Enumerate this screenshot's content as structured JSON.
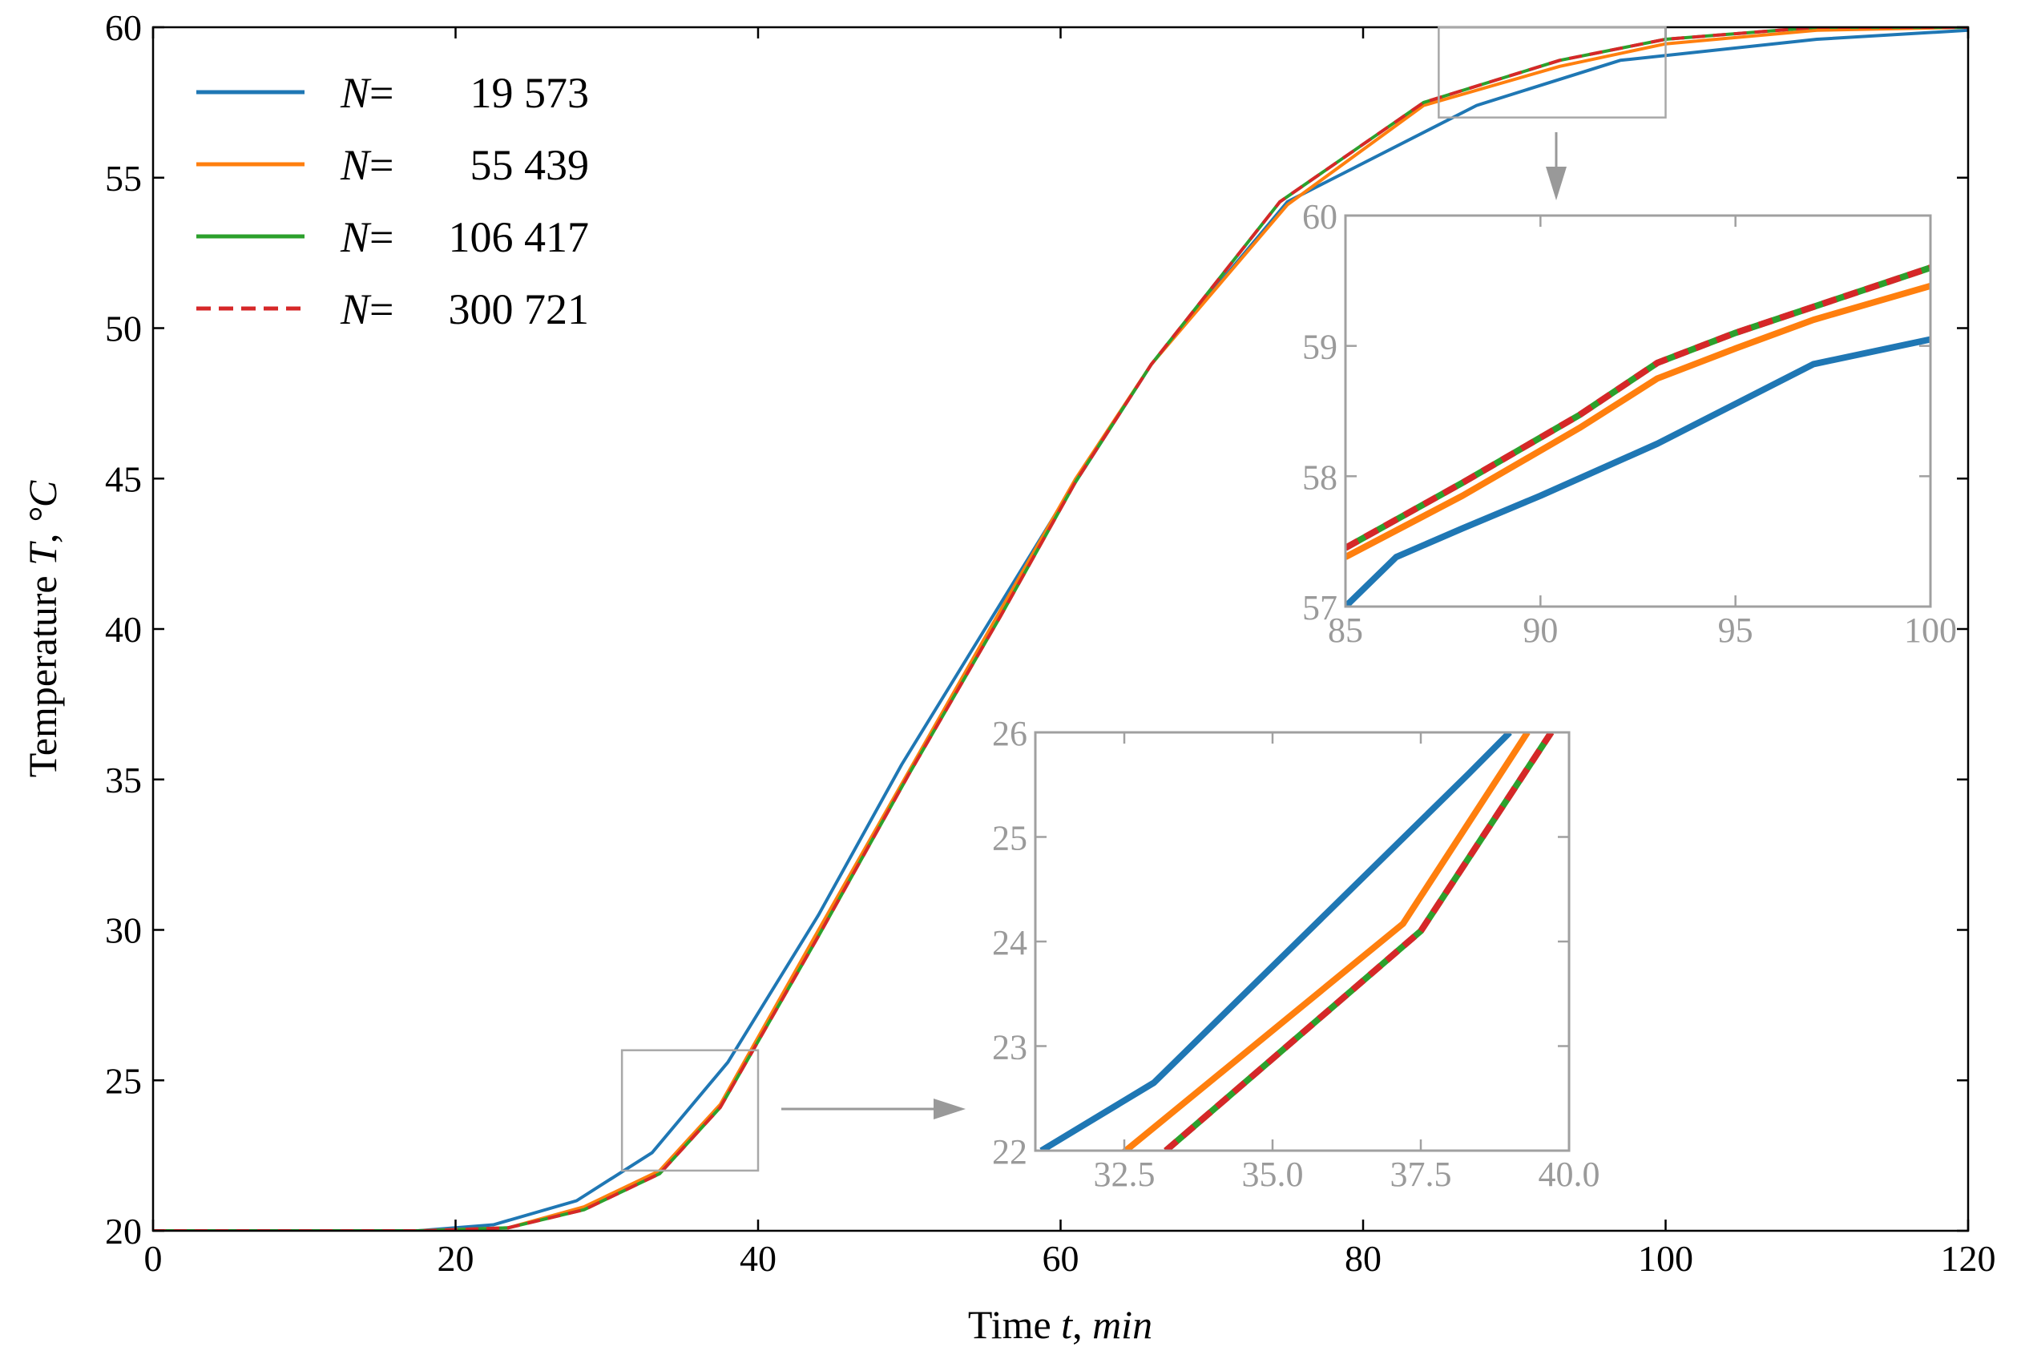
{
  "chart_data": [
    {
      "id": "main",
      "type": "line",
      "title": "",
      "xlabel": "Time t, min",
      "ylabel": "Temperature T, °C",
      "xlabel_parts": {
        "prefix": "Time ",
        "var": "t",
        "sep": ", ",
        "unit": "min"
      },
      "ylabel_parts": {
        "prefix": "Temperature ",
        "var": "T",
        "sep": ", ",
        "unit": "°C"
      },
      "xlim": [
        0,
        120
      ],
      "ylim": [
        20,
        60
      ],
      "xticks": [
        0,
        20,
        40,
        60,
        80,
        100,
        120
      ],
      "yticks": [
        20,
        25,
        30,
        35,
        40,
        45,
        50,
        55,
        60
      ],
      "xtick_labels": [
        "0",
        "20",
        "40",
        "60",
        "80",
        "100",
        "120"
      ],
      "ytick_labels": [
        "20",
        "25",
        "30",
        "35",
        "40",
        "45",
        "50",
        "55",
        "60"
      ],
      "grid": false,
      "legend_position": "top-left",
      "series": [
        {
          "name": "N = 19 573",
          "label_var": "N",
          "label_eq": "=",
          "label_value": "19 573",
          "color": "#1f77b4",
          "dash": "solid",
          "x": [
            0,
            17.5,
            22.5,
            28,
            33,
            38,
            44,
            49.5,
            55,
            60.5,
            66,
            75,
            87.5,
            97,
            110,
            120
          ],
          "y": [
            20,
            20,
            20.2,
            21.0,
            22.6,
            25.6,
            30.5,
            35.5,
            40.0,
            44.5,
            48.8,
            54.2,
            57.4,
            58.9,
            59.6,
            59.9
          ]
        },
        {
          "name": "N = 55 439",
          "label_var": "N",
          "label_eq": "=",
          "label_value": "55 439",
          "color": "#ff7f0e",
          "dash": "solid",
          "x": [
            0,
            17.5,
            23.5,
            28.5,
            33.5,
            37.5,
            44,
            50,
            56,
            61,
            66,
            75,
            84,
            93,
            100,
            110,
            120
          ],
          "y": [
            20,
            20,
            20.1,
            20.8,
            22.0,
            24.2,
            30.0,
            35.3,
            40.6,
            45.0,
            48.8,
            54.1,
            57.4,
            58.7,
            59.45,
            59.9,
            60
          ]
        },
        {
          "name": "N = 106 417",
          "label_var": "N",
          "label_eq": "=",
          "label_value": "106 417",
          "color": "#2ca02c",
          "dash": "solid",
          "x": [
            0,
            18,
            23.5,
            28.5,
            33.5,
            37.5,
            44,
            50,
            56,
            61,
            66,
            74.5,
            84,
            93,
            100,
            110,
            120
          ],
          "y": [
            20,
            20,
            20.1,
            20.7,
            21.9,
            24.1,
            29.8,
            35.2,
            40.4,
            44.9,
            48.8,
            54.2,
            57.5,
            58.9,
            59.6,
            60,
            60
          ]
        },
        {
          "name": "N = 300 721",
          "label_var": "N",
          "label_eq": "=",
          "label_value": "300 721",
          "color": "#d62728",
          "dash": "dashed",
          "x": [
            0,
            18,
            23.5,
            28.5,
            33.5,
            37.5,
            44,
            50,
            56,
            61,
            66,
            74.5,
            84,
            93,
            100,
            110,
            120
          ],
          "y": [
            20,
            20,
            20.1,
            20.7,
            21.9,
            24.1,
            29.8,
            35.2,
            40.4,
            44.9,
            48.8,
            54.2,
            57.5,
            58.9,
            59.6,
            60,
            60
          ]
        }
      ],
      "zoom_regions": [
        {
          "target": "inset-upper",
          "xlim": [
            85,
            100
          ],
          "ylim": [
            57,
            60
          ]
        },
        {
          "target": "inset-lower",
          "xlim": [
            31,
            40
          ],
          "ylim": [
            22,
            26
          ]
        }
      ]
    },
    {
      "id": "inset-upper",
      "type": "line",
      "xlim": [
        85,
        100
      ],
      "ylim": [
        57,
        60
      ],
      "xticks": [
        85,
        90,
        95,
        100
      ],
      "yticks": [
        57,
        58,
        59,
        60
      ],
      "xtick_labels": [
        "85",
        "90",
        "95",
        "100"
      ],
      "ytick_labels": [
        "57",
        "58",
        "59",
        "60"
      ],
      "series": [
        {
          "name": "N = 19 573",
          "color": "#1f77b4",
          "dash": "solid",
          "x": [
            85,
            86.3,
            88,
            90,
            93,
            97,
            100
          ],
          "y": [
            57.0,
            57.38,
            57.6,
            57.85,
            58.25,
            58.86,
            59.05
          ]
        },
        {
          "name": "N = 55 439",
          "color": "#ff7f0e",
          "dash": "solid",
          "x": [
            85,
            88,
            91,
            93,
            95,
            97,
            100
          ],
          "y": [
            57.38,
            57.85,
            58.37,
            58.75,
            58.98,
            59.2,
            59.46
          ]
        },
        {
          "name": "N = 106 417",
          "color": "#2ca02c",
          "dash": "solid",
          "x": [
            85,
            88,
            91,
            93,
            95,
            97,
            100
          ],
          "y": [
            57.45,
            57.95,
            58.47,
            58.87,
            59.1,
            59.3,
            59.6
          ]
        },
        {
          "name": "N = 300 721",
          "color": "#d62728",
          "dash": "dashed",
          "x": [
            85,
            88,
            91,
            93,
            95,
            97,
            100
          ],
          "y": [
            57.45,
            57.95,
            58.47,
            58.87,
            59.1,
            59.3,
            59.6
          ]
        }
      ]
    },
    {
      "id": "inset-lower",
      "type": "line",
      "xlim": [
        31,
        40
      ],
      "ylim": [
        22,
        26
      ],
      "xticks": [
        32.5,
        35.0,
        37.5,
        40.0
      ],
      "yticks": [
        22,
        23,
        24,
        25,
        26
      ],
      "xtick_labels": [
        "32.5",
        "35.0",
        "37.5",
        "40.0"
      ],
      "ytick_labels": [
        "22",
        "23",
        "24",
        "25",
        "26"
      ],
      "series": [
        {
          "name": "N = 19 573",
          "color": "#1f77b4",
          "dash": "solid",
          "x": [
            31.1,
            33.0,
            38.3,
            39.0
          ],
          "y": [
            22.0,
            22.65,
            25.6,
            26.0
          ]
        },
        {
          "name": "N = 55 439",
          "color": "#ff7f0e",
          "dash": "solid",
          "x": [
            32.2,
            37.2,
            39.3
          ],
          "y": [
            21.85,
            24.17,
            26.0
          ]
        },
        {
          "name": "N = 106 417",
          "color": "#2ca02c",
          "dash": "solid",
          "x": [
            33.2,
            37.5,
            39.7
          ],
          "y": [
            22.0,
            24.1,
            26.0
          ]
        },
        {
          "name": "N = 300 721",
          "color": "#d62728",
          "dash": "dashed",
          "x": [
            33.2,
            37.5,
            39.7
          ],
          "y": [
            22.0,
            24.1,
            26.0
          ]
        }
      ]
    }
  ]
}
